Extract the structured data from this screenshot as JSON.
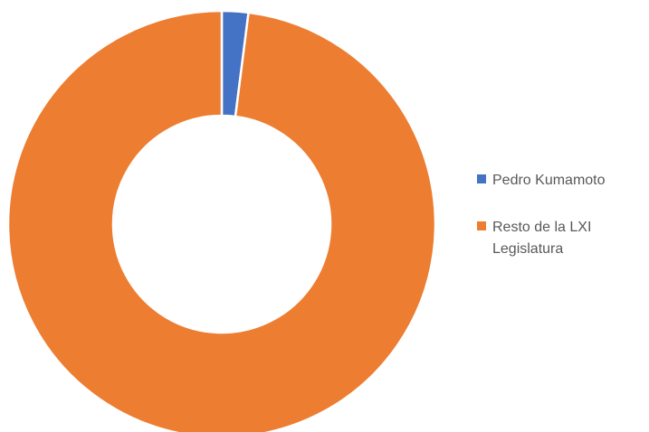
{
  "chart_data": {
    "type": "pie",
    "variant": "donut",
    "title": "",
    "legend_position": "right",
    "series": [
      {
        "name": "Pedro Kumamoto",
        "value": 2,
        "color": "#4472C4"
      },
      {
        "name": "Resto de la LXI Legislatura",
        "value": 98,
        "color": "#ED7D31"
      }
    ]
  },
  "legend": {
    "items": [
      {
        "label": "Pedro Kumamoto",
        "color": "#4472C4"
      },
      {
        "label": "Resto de la LXI Legislatura",
        "color": "#ED7D31"
      }
    ]
  }
}
